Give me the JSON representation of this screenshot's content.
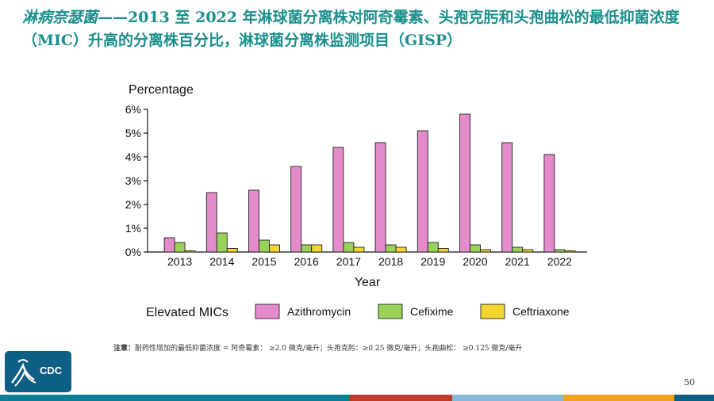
{
  "header": {
    "title_italic": "淋病奈瑟菌",
    "title_main": "——2013 至 2022 年淋球菌分离株对阿奇霉素、头孢克肟和头孢曲松的最低抑菌浓度（MIC）升高的分离株百分比，淋球菌分离株监测项目（GISP）"
  },
  "chart_data": {
    "type": "bar",
    "ylabel": "Percentage",
    "xlabel": "Year",
    "ylim": [
      0,
      6
    ],
    "yticks": [
      "0%",
      "1%",
      "2%",
      "3%",
      "4%",
      "5%",
      "6%"
    ],
    "categories": [
      "2013",
      "2014",
      "2015",
      "2016",
      "2017",
      "2018",
      "2019",
      "2020",
      "2021",
      "2022"
    ],
    "legend_title": "Elevated MICs",
    "series": [
      {
        "name": "Azithromycin",
        "color": "#e48bcb",
        "values": [
          0.6,
          2.5,
          2.6,
          3.6,
          4.4,
          4.6,
          5.1,
          5.8,
          4.6,
          4.1
        ]
      },
      {
        "name": "Cefixime",
        "color": "#9ad15a",
        "values": [
          0.4,
          0.8,
          0.5,
          0.3,
          0.4,
          0.3,
          0.4,
          0.3,
          0.2,
          0.1
        ]
      },
      {
        "name": "Ceftriaxone",
        "color": "#f3d531",
        "values": [
          0.05,
          0.15,
          0.3,
          0.3,
          0.2,
          0.2,
          0.15,
          0.1,
          0.1,
          0.05
        ]
      }
    ]
  },
  "footnote": {
    "label": "注意：",
    "text": "耐药性增加的最低抑菌浓度 = 阿奇霉素：  ≥2.0 微克/毫升；头孢克肟：≥0.25 微克/毫升；头孢曲松：  ≥0.125 微克/毫升"
  },
  "logo": {
    "text": "CDC"
  },
  "page_number": "50",
  "bottom_bar_colors": [
    "#0e7d96",
    "#0e7d96",
    "#0e7d96",
    "#0e7d96",
    "#c0392b",
    "#85b8d9",
    "#f0a21b",
    "#0d5f85"
  ]
}
